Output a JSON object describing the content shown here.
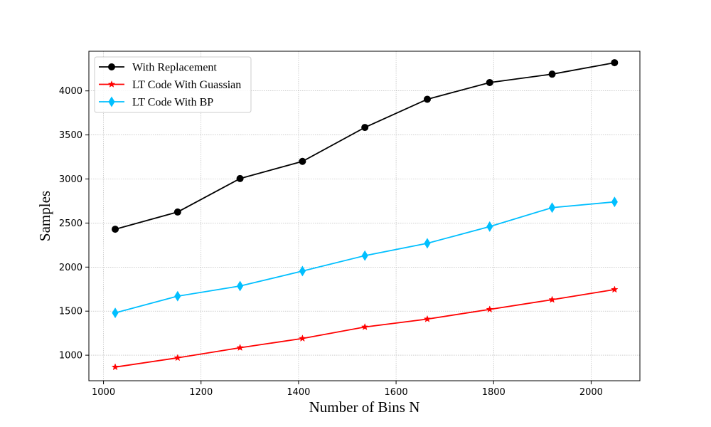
{
  "chart_data": {
    "type": "line",
    "title": "",
    "xlabel": "Number of Bins N",
    "ylabel": "Samples",
    "x": [
      1024,
      1152,
      1280,
      1408,
      1536,
      1664,
      1792,
      1920,
      2048
    ],
    "xlim": [
      970,
      2100
    ],
    "ylim": [
      710,
      4450
    ],
    "xticks": [
      1000,
      1200,
      1400,
      1600,
      1800,
      2000
    ],
    "yticks": [
      1000,
      1500,
      2000,
      2500,
      3000,
      3500,
      4000
    ],
    "grid": true,
    "legend_position": "top-left",
    "series": [
      {
        "name": "With Replacement",
        "color": "#000000",
        "marker": "circle",
        "values": [
          2430,
          2625,
          3005,
          3200,
          3585,
          3905,
          4095,
          4190,
          4320
        ]
      },
      {
        "name": "LT Code With Guassian",
        "color": "#ff0000",
        "marker": "star",
        "values": [
          865,
          970,
          1085,
          1190,
          1320,
          1410,
          1520,
          1630,
          1745
        ]
      },
      {
        "name": "LT Code With BP",
        "color": "#00bfff",
        "marker": "diamond",
        "values": [
          1480,
          1670,
          1785,
          1955,
          2130,
          2270,
          2460,
          2675,
          2740
        ]
      }
    ]
  }
}
